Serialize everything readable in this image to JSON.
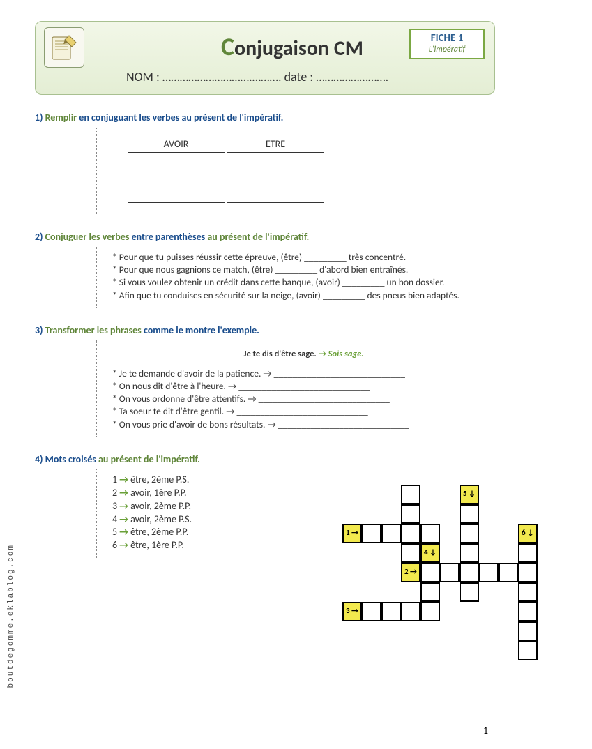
{
  "header": {
    "title_prefix": "C",
    "title_rest": "onjugaison CM",
    "nom_date": "NOM : ………………………….……….      date : …………………….",
    "fiche_title": "FICHE 1",
    "fiche_sub": "L'impératif"
  },
  "ex1": {
    "num": "1)",
    "title_green": " Remplir",
    "title_rest": " en conjuguant les verbes au présent de l'impératif.",
    "col1": "AVOIR",
    "col2": "ETRE"
  },
  "ex2": {
    "num": "2)",
    "title_green": " Conjuguer les verbes",
    "title_mid": " entre parenthèses",
    "title_green2": " au présent de l'impératif.",
    "lines": [
      "* Pour que tu puisses réussir cette épreuve, (être) _________ très concentré.",
      "* Pour que nous gagnions ce match, (être) _________ d'abord bien entraînés.",
      "* Si vous voulez obtenir un crédit dans cette banque, (avoir) _________ un bon dossier.",
      "* Afin que tu conduises en sécurité sur la neige, (avoir) _________ des pneus bien adaptés."
    ]
  },
  "ex3": {
    "num": "3)",
    "title_green": " Transformer les phrases",
    "title_rest": " comme le montre l'exemple.",
    "example_q": "Je te dis d'être sage.",
    "example_arrow": "→",
    "example_a": "Sois sage",
    "lines": [
      "* Je te demande d'avoir de la patience.    → ____________________________",
      "* On nous dit d'être à l'heure. → ____________________________",
      "* On vous ordonne d'être attentifs. → ____________________________",
      "* Ta soeur te dit d'être gentil. → ____________________________",
      "* On vous prie d'avoir de bons résultats. → ____________________________"
    ]
  },
  "ex4": {
    "num": "4)",
    "title_black": " Mots croisés",
    "title_green": " au présent de l'impératif.",
    "clues": [
      {
        "n": "1",
        "txt": "être, 2ème P.S."
      },
      {
        "n": "2",
        "txt": "avoir, 1ère P.P."
      },
      {
        "n": "3",
        "txt": "avoir, 2ème P.P."
      },
      {
        "n": "4",
        "txt": "avoir, 2ème P.S."
      },
      {
        "n": "5",
        "txt": "être, 2ème P.P."
      },
      {
        "n": "6",
        "txt": "être, 1ère P.P."
      }
    ],
    "labels": {
      "l1": "1 →",
      "l2": "2 →",
      "l3": "3 →",
      "l4": "4 ↓",
      "l5": "5 ↓",
      "l6": "6 ↓"
    },
    "grid": {
      "cell": 28,
      "ox": 210,
      "oy": 10,
      "cells": [
        [
          0,
          2
        ],
        [
          1,
          2
        ],
        [
          2,
          2
        ],
        [
          3,
          2
        ],
        [
          2,
          0
        ],
        [
          2,
          1
        ],
        [
          2,
          3
        ],
        [
          5,
          1
        ],
        [
          5,
          2
        ],
        [
          5,
          3
        ],
        [
          5,
          4
        ],
        [
          5,
          5
        ],
        [
          3,
          4
        ],
        [
          4,
          4
        ],
        [
          5,
          4
        ],
        [
          6,
          4
        ],
        [
          7,
          4
        ],
        [
          3,
          4
        ],
        [
          3,
          5
        ],
        [
          3,
          6
        ],
        [
          0,
          6
        ],
        [
          1,
          6
        ],
        [
          2,
          6
        ],
        [
          3,
          6
        ],
        [
          8,
          3
        ],
        [
          8,
          4
        ],
        [
          8,
          5
        ],
        [
          8,
          6
        ],
        [
          8,
          7
        ],
        [
          8,
          8
        ]
      ],
      "labelpos": {
        "l5": [
          5,
          0
        ],
        "l1": [
          -1,
          2
        ],
        "l6": [
          8,
          2
        ],
        "l2": [
          2,
          4
        ],
        "l4": [
          3,
          3
        ],
        "l3": [
          -1,
          6
        ]
      }
    }
  },
  "side_text": "boutdegomme.eklablog.com",
  "page_num": "1",
  "colors": {
    "header_border": "#a8c090",
    "header_bg_top": "#f2f7e8",
    "header_bg_bot": "#e4eed4",
    "fiche_border": "#7ba843",
    "green": "#60863a",
    "blue": "#1a4d8c",
    "arrow": "#6aa038",
    "cw_label_bg": "#f2e94e"
  }
}
